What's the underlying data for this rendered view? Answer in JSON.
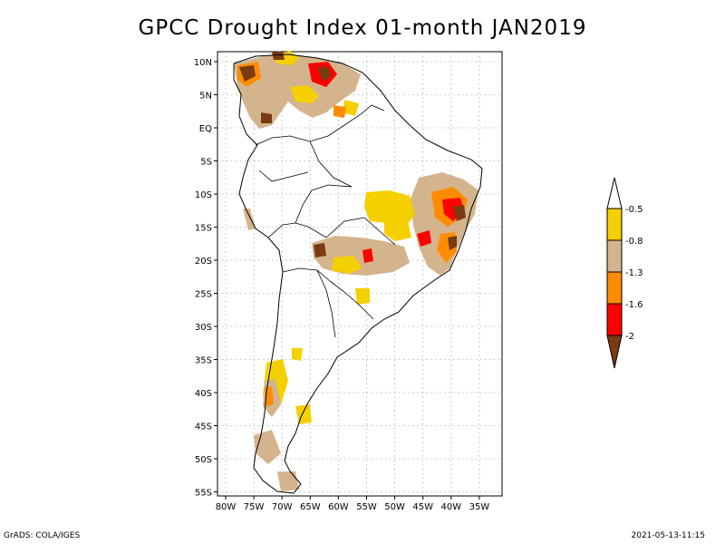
{
  "title": "GPCC Drought Index 01-month JAN2019",
  "axes": {
    "lon_ticks": [
      "80W",
      "75W",
      "70W",
      "65W",
      "60W",
      "55W",
      "50W",
      "45W",
      "40W",
      "35W"
    ],
    "lat_ticks": [
      "10N",
      "5N",
      "EQ",
      "5S",
      "10S",
      "15S",
      "20S",
      "25S",
      "30S",
      "35S",
      "40S",
      "45S",
      "50S",
      "55S"
    ]
  },
  "legend": {
    "labels": [
      "-0.5",
      "-0.8",
      "-1.3",
      "-1.6",
      "-2"
    ],
    "colors": [
      "#ffffff",
      "#f5d000",
      "#d4b48c",
      "#ff8c00",
      "#ff0000",
      "#7a3a12"
    ]
  },
  "footer": {
    "left": "GrADS: COLA/IGES",
    "right": "2021-05-13-11:15"
  }
}
